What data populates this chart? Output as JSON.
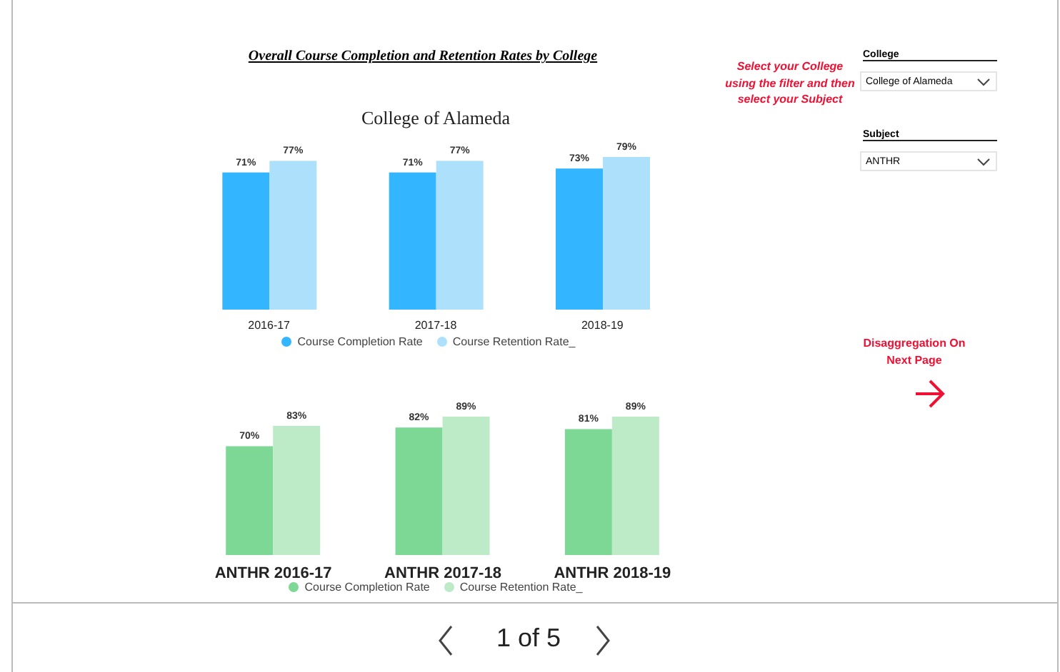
{
  "chart_data": [
    {
      "type": "bar",
      "title": "Overall Course Completion and Retention Rates by College",
      "subtitle": "College of Alameda",
      "categories": [
        "2016-17",
        "2017-18",
        "2018-19"
      ],
      "series": [
        {
          "name": "Course Completion Rate",
          "color": "#33b5ff",
          "values": [
            71,
            71,
            73
          ],
          "value_labels": [
            "71%",
            "71%",
            "73%"
          ]
        },
        {
          "name": "Course Retention Rate_",
          "color": "#ade0fb",
          "values": [
            77,
            77,
            79
          ],
          "value_labels": [
            "77%",
            "77%",
            "79%"
          ]
        }
      ],
      "legend": "bottom",
      "tick_labels": "x"
    },
    {
      "type": "bar",
      "categories": [
        "ANTHR 2016-17",
        "ANTHR 2017-18",
        "ANTHR 2018-19"
      ],
      "series": [
        {
          "name": "Course Completion Rate",
          "color": "#7dd896",
          "values": [
            70,
            82,
            81
          ],
          "value_labels": [
            "70%",
            "82%",
            "81%"
          ]
        },
        {
          "name": "Course Retention Rate_",
          "color": "#bdebc8",
          "values": [
            83,
            89,
            89
          ],
          "value_labels": [
            "83%",
            "89%",
            "89%"
          ]
        }
      ],
      "legend": "bottom",
      "tick_labels": "x"
    },
    {
      "type": "other",
      "annotations": [
        "Select  your College using the filter and then select your Subject",
        "College",
        "College of Alameda",
        "Subject",
        "ANTHR",
        "Disaggregation On Next Page",
        "1 of 5"
      ]
    }
  ]
}
